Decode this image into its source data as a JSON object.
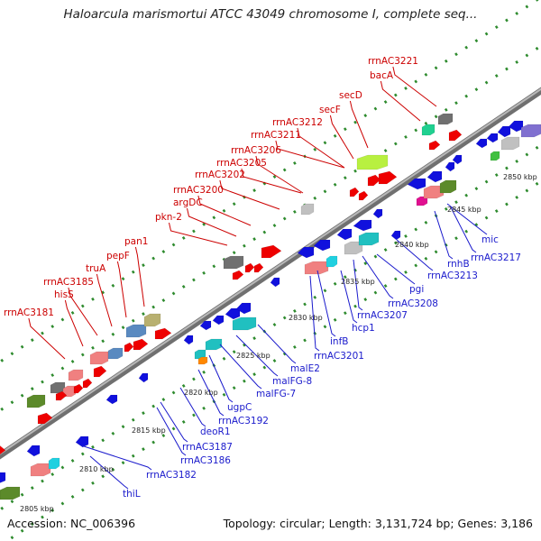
{
  "title": "Haloarcula marismortui ATCC 43049 chromosome I, complete seq...",
  "accession_text": "Accession: NC_006396",
  "topology_text": "Topology: circular; Length: 3,131,724 bp; Genes: 3,186",
  "colors": {
    "backbone": "#8a8a8a",
    "tick": "#2e8b2e",
    "forward_label": "#cc0000",
    "reverse_label": "#1a1acc",
    "forward_gene": "#ee0000",
    "reverse_gene": "#1010dd"
  },
  "kbp_labels": [
    "2805 kbp",
    "2810 kbp",
    "2815 kbp",
    "2820 kbp",
    "2825 kbp",
    "2830 kbp",
    "2835 kbp",
    "2840 kbp",
    "2845 kbp",
    "2850 kbp"
  ],
  "forward_labels": [
    "rrnAC3181",
    "hisS",
    "rrnAC3185",
    "truA",
    "pepF",
    "pan1",
    "pkn-2",
    "argDC",
    "rrnAC3200",
    "rrnAC3202",
    "rrnAC3205",
    "rrnAC3206",
    "rrnAC3211",
    "rrnAC3212",
    "secF",
    "secD",
    "bacA",
    "rrnAC3221"
  ],
  "reverse_labels": [
    "thiL",
    "rrnAC3182",
    "rrnAC3186",
    "rrnAC3187",
    "deoR1",
    "rrnAC3192",
    "ugpC",
    "malFG-7",
    "malFG-8",
    "malE2",
    "rrnAC3201",
    "infB",
    "hcp1",
    "rrnAC3207",
    "rrnAC3208",
    "pgi",
    "rrnAC3213",
    "rnhB",
    "rrnAC3217",
    "mic"
  ]
}
